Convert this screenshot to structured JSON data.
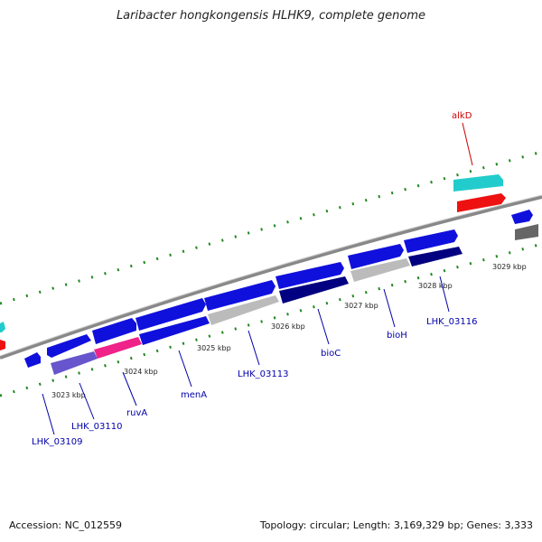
{
  "title": "Laribacter hongkongensis HLHK9, complete genome",
  "footer": {
    "accession": "Accession: NC_012559",
    "summary": "Topology: circular; Length: 3,169,329 bp; Genes: 3,333"
  },
  "scale_labels": [
    {
      "text": "3023 kbp",
      "name": "scale-3023"
    },
    {
      "text": "3024 kbp",
      "name": "scale-3024"
    },
    {
      "text": "3025 kbp",
      "name": "scale-3025"
    },
    {
      "text": "3026 kbp",
      "name": "scale-3026"
    },
    {
      "text": "3027 kbp",
      "name": "scale-3027"
    },
    {
      "text": "3028 kbp",
      "name": "scale-3028"
    },
    {
      "text": "3029 kbp",
      "name": "scale-3029"
    }
  ],
  "gene_labels": [
    {
      "text": "LHK_03109",
      "color": "#0000aa"
    },
    {
      "text": "LHK_03110",
      "color": "#0000aa"
    },
    {
      "text": "ruvA",
      "color": "#0000aa"
    },
    {
      "text": "menA",
      "color": "#0000aa"
    },
    {
      "text": "LHK_03113",
      "color": "#0000aa"
    },
    {
      "text": "bioC",
      "color": "#0000aa"
    },
    {
      "text": "bioH",
      "color": "#0000aa"
    },
    {
      "text": "LHK_03116",
      "color": "#0000aa"
    },
    {
      "text": "alkD",
      "color": "#cc0000"
    }
  ],
  "colors": {
    "backbone": "#888888",
    "gene_blue": "#1010dd",
    "gene_pink": "#ee2288",
    "gene_purple": "#6655cc",
    "gene_gray": "#bbbbbb",
    "gene_navy": "#000080",
    "gene_cyan": "#22cccc",
    "gene_red": "#ee1111",
    "gene_darkgray": "#666666",
    "tick_green": "#228822"
  }
}
